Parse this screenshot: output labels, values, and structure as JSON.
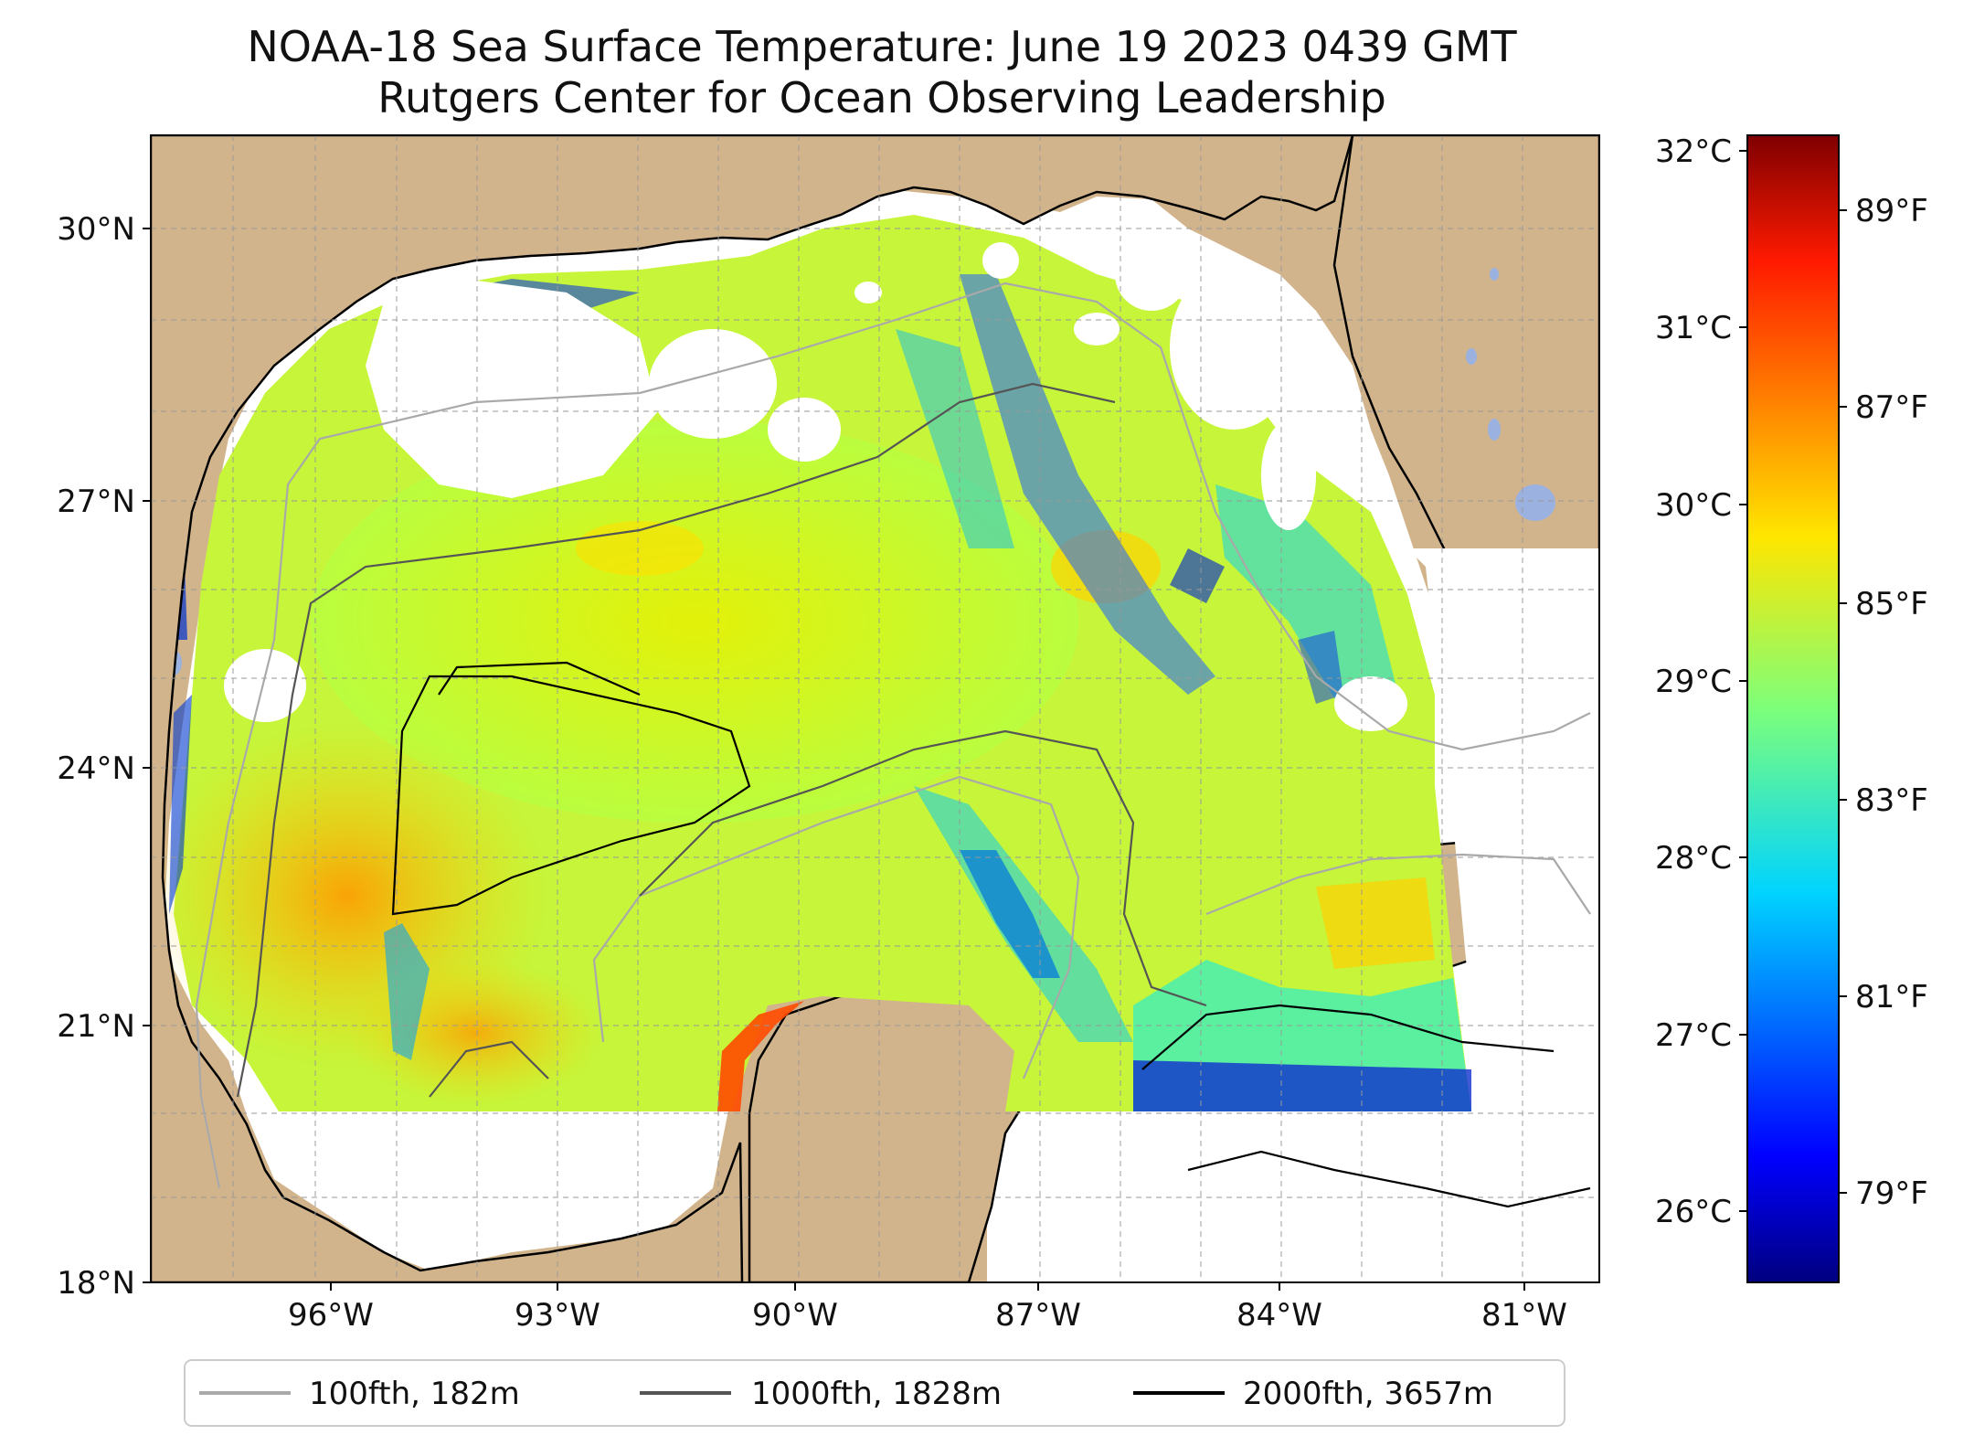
{
  "title": "NOAA-18 Sea Surface Temperature: June 19 2023 0439 GMT",
  "subtitle": "Rutgers Center for Ocean Observing Leadership",
  "map": {
    "lat_ticks": [
      "30°N",
      "27°N",
      "24°N",
      "21°N",
      "18°N"
    ],
    "lon_ticks": [
      "96°W",
      "93°W",
      "90°W",
      "87°W",
      "84°W",
      "81°W"
    ],
    "extent": {
      "lon_min": -98.3,
      "lon_max": -80.3,
      "lat_min": 18.0,
      "lat_max": 31.0
    },
    "colors": {
      "land": "#d2b48c",
      "no_data": "#ffffff",
      "inland_water": "#9bb2e0",
      "coast": "#000000"
    }
  },
  "colorbar": {
    "celsius_ticks": [
      "32°C",
      "31°C",
      "30°C",
      "29°C",
      "28°C",
      "27°C",
      "26°C"
    ],
    "fahrenheit_ticks": [
      "89°F",
      "87°F",
      "85°F",
      "83°F",
      "81°F",
      "79°F"
    ],
    "colormap": "jet",
    "range_c": [
      25.6,
      32.2
    ]
  },
  "legend": {
    "items": [
      {
        "label": "100fth, 182m",
        "color": "#a9a9a9"
      },
      {
        "label": "1000fth, 1828m",
        "color": "#555555"
      },
      {
        "label": "2000fth, 3657m",
        "color": "#000000"
      }
    ]
  }
}
